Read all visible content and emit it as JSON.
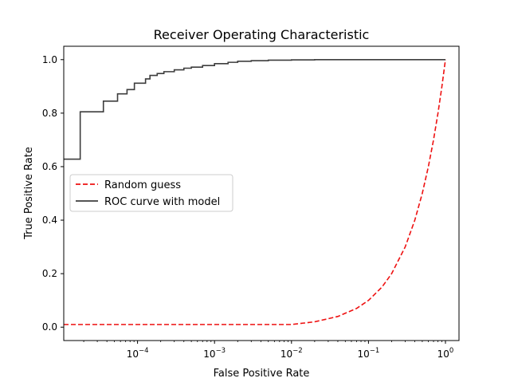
{
  "chart_data": {
    "type": "line",
    "title": "Receiver Operating Characteristic",
    "xlabel": "False Positive Rate",
    "ylabel": "True Positive Rate",
    "xscale": "log",
    "xlim": [
      1.1e-05,
      1.5
    ],
    "ylim": [
      -0.05,
      1.05
    ],
    "x_tick_values": [
      0.0001,
      0.001,
      0.01,
      0.1,
      1
    ],
    "x_tick_labels": [
      {
        "base": "10",
        "exp": "−4"
      },
      {
        "base": "10",
        "exp": "−3"
      },
      {
        "base": "10",
        "exp": "−2"
      },
      {
        "base": "10",
        "exp": "−1"
      },
      {
        "base": "10",
        "exp": "0"
      }
    ],
    "y_tick_values": [
      0.0,
      0.2,
      0.4,
      0.6,
      0.8,
      1.0
    ],
    "y_tick_labels": [
      "0.0",
      "0.2",
      "0.4",
      "0.6",
      "0.8",
      "1.0"
    ],
    "grid": false,
    "legend_position": "center-left",
    "series": [
      {
        "name": "Random guess",
        "color": "#ee1111",
        "style": "dashed",
        "type": "line",
        "points": [
          [
            1.1e-05,
            0.01
          ],
          [
            0.01,
            0.01
          ],
          [
            0.02,
            0.02
          ],
          [
            0.04,
            0.04
          ],
          [
            0.07,
            0.07
          ],
          [
            0.1,
            0.1
          ],
          [
            0.15,
            0.15
          ],
          [
            0.2,
            0.2
          ],
          [
            0.3,
            0.3
          ],
          [
            0.4,
            0.4
          ],
          [
            0.5,
            0.5
          ],
          [
            0.6,
            0.6
          ],
          [
            0.7,
            0.7
          ],
          [
            0.8,
            0.8
          ],
          [
            0.9,
            0.9
          ],
          [
            1.0,
            1.0
          ]
        ]
      },
      {
        "name": "ROC curve with model",
        "color": "#3d3d3d",
        "style": "solid",
        "type": "step",
        "points": [
          [
            1.1e-05,
            0.628
          ],
          [
            1.8e-05,
            0.628
          ],
          [
            1.8e-05,
            0.805
          ],
          [
            3.6e-05,
            0.805
          ],
          [
            3.6e-05,
            0.845
          ],
          [
            5.5e-05,
            0.845
          ],
          [
            5.5e-05,
            0.872
          ],
          [
            7.3e-05,
            0.872
          ],
          [
            7.3e-05,
            0.888
          ],
          [
            9.1e-05,
            0.888
          ],
          [
            9.1e-05,
            0.912
          ],
          [
            0.000127,
            0.912
          ],
          [
            0.000127,
            0.928
          ],
          [
            0.000145,
            0.928
          ],
          [
            0.000145,
            0.941
          ],
          [
            0.00018,
            0.941
          ],
          [
            0.00018,
            0.948
          ],
          [
            0.00022,
            0.948
          ],
          [
            0.00022,
            0.955
          ],
          [
            0.0003,
            0.955
          ],
          [
            0.0003,
            0.962
          ],
          [
            0.0004,
            0.962
          ],
          [
            0.0004,
            0.968
          ],
          [
            0.0005,
            0.968
          ],
          [
            0.0005,
            0.972
          ],
          [
            0.0007,
            0.972
          ],
          [
            0.0007,
            0.978
          ],
          [
            0.001,
            0.978
          ],
          [
            0.001,
            0.985
          ],
          [
            0.0015,
            0.985
          ],
          [
            0.0015,
            0.99
          ],
          [
            0.002,
            0.99
          ],
          [
            0.002,
            0.994
          ],
          [
            0.003,
            0.994
          ],
          [
            0.003,
            0.996
          ],
          [
            0.005,
            0.996
          ],
          [
            0.005,
            0.998
          ],
          [
            0.01,
            0.998
          ],
          [
            0.01,
            0.999
          ],
          [
            0.02,
            0.999
          ],
          [
            0.02,
            1.0
          ],
          [
            1.0,
            1.0
          ]
        ]
      }
    ]
  }
}
